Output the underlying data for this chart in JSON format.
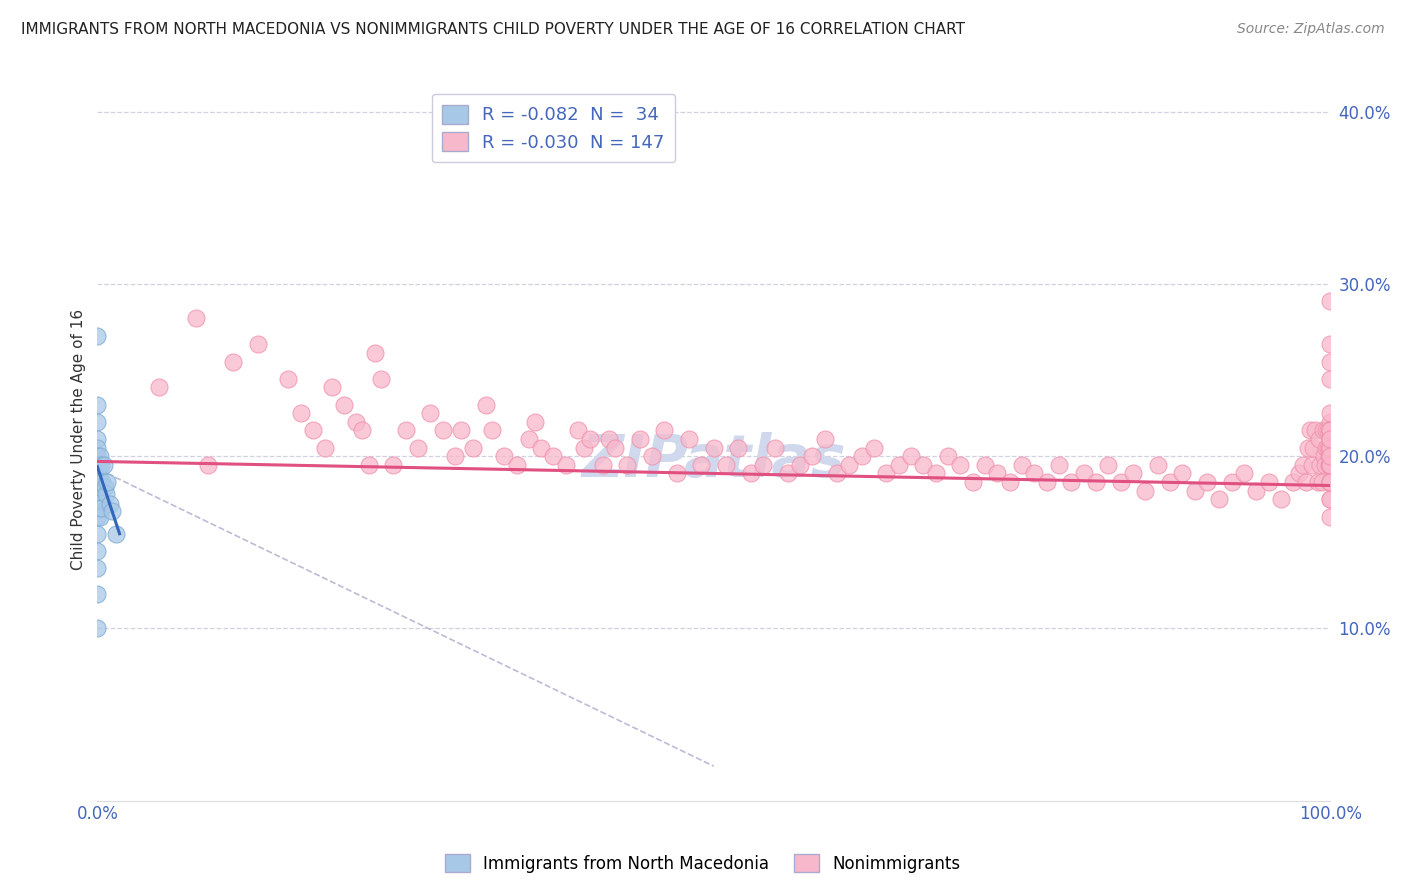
{
  "title": "IMMIGRANTS FROM NORTH MACEDONIA VS NONIMMIGRANTS CHILD POVERTY UNDER THE AGE OF 16 CORRELATION CHART",
  "source": "Source: ZipAtlas.com",
  "ylabel": "Child Poverty Under the Age of 16",
  "xlim": [
    0.0,
    1.0
  ],
  "ylim": [
    0.0,
    0.42
  ],
  "yticks": [
    0.1,
    0.2,
    0.3,
    0.4
  ],
  "ytick_labels": [
    "10.0%",
    "20.0%",
    "30.0%",
    "40.0%"
  ],
  "xticks": [
    0.0,
    0.5,
    1.0
  ],
  "xtick_labels": [
    "0.0%",
    "",
    "100.0%"
  ],
  "background_color": "#ffffff",
  "grid_color": "#ccccdd",
  "blue_fill": "#a8c8e8",
  "blue_edge": "#7aaad0",
  "pink_fill": "#f8b8cc",
  "pink_edge": "#f090aa",
  "blue_line_color": "#3366bb",
  "pink_line_color": "#e05080",
  "dashed_line_color": "#aaaacc",
  "tick_color": "#4466bb",
  "watermark_color": "#d0d8ee",
  "imm_x": [
    0.0,
    0.0,
    0.0,
    0.0,
    0.0,
    0.0,
    0.0,
    0.0,
    0.0,
    0.0,
    0.0,
    0.0,
    0.0,
    0.0,
    0.0,
    0.0,
    0.0,
    0.0,
    0.001,
    0.001,
    0.001,
    0.002,
    0.002,
    0.002,
    0.003,
    0.003,
    0.004,
    0.005,
    0.006,
    0.007,
    0.008,
    0.01,
    0.012,
    0.015
  ],
  "imm_y": [
    0.27,
    0.23,
    0.22,
    0.21,
    0.205,
    0.2,
    0.195,
    0.19,
    0.185,
    0.18,
    0.175,
    0.17,
    0.165,
    0.155,
    0.145,
    0.135,
    0.12,
    0.1,
    0.195,
    0.188,
    0.175,
    0.2,
    0.182,
    0.165,
    0.195,
    0.17,
    0.185,
    0.195,
    0.182,
    0.178,
    0.185,
    0.172,
    0.168,
    0.155
  ],
  "non_x": [
    0.05,
    0.08,
    0.09,
    0.11,
    0.13,
    0.155,
    0.165,
    0.175,
    0.185,
    0.19,
    0.2,
    0.21,
    0.215,
    0.22,
    0.225,
    0.23,
    0.24,
    0.25,
    0.26,
    0.27,
    0.28,
    0.29,
    0.295,
    0.305,
    0.315,
    0.32,
    0.33,
    0.34,
    0.35,
    0.355,
    0.36,
    0.37,
    0.38,
    0.39,
    0.395,
    0.4,
    0.41,
    0.415,
    0.42,
    0.43,
    0.44,
    0.45,
    0.46,
    0.47,
    0.48,
    0.49,
    0.5,
    0.51,
    0.52,
    0.53,
    0.54,
    0.55,
    0.56,
    0.57,
    0.58,
    0.59,
    0.6,
    0.61,
    0.62,
    0.63,
    0.64,
    0.65,
    0.66,
    0.67,
    0.68,
    0.69,
    0.7,
    0.71,
    0.72,
    0.73,
    0.74,
    0.75,
    0.76,
    0.77,
    0.78,
    0.79,
    0.8,
    0.81,
    0.82,
    0.83,
    0.84,
    0.85,
    0.86,
    0.87,
    0.88,
    0.89,
    0.9,
    0.91,
    0.92,
    0.93,
    0.94,
    0.95,
    0.96,
    0.97,
    0.975,
    0.978,
    0.98,
    0.982,
    0.984,
    0.985,
    0.986,
    0.988,
    0.99,
    0.991,
    0.992,
    0.993,
    0.994,
    0.995,
    0.996,
    0.997,
    0.997,
    0.998,
    0.998,
    0.999,
    0.999,
    1.0,
    1.0,
    1.0,
    1.0,
    1.0,
    1.0,
    1.0,
    1.0,
    1.0,
    1.0,
    1.0,
    1.0,
    1.0,
    1.0,
    1.0,
    1.0,
    1.0,
    1.0,
    1.0,
    1.0,
    1.0,
    1.0,
    1.0,
    1.0,
    1.0,
    1.0,
    1.0,
    1.0,
    1.0,
    1.0,
    1.0,
    1.0
  ],
  "non_y": [
    0.24,
    0.28,
    0.195,
    0.255,
    0.265,
    0.245,
    0.225,
    0.215,
    0.205,
    0.24,
    0.23,
    0.22,
    0.215,
    0.195,
    0.26,
    0.245,
    0.195,
    0.215,
    0.205,
    0.225,
    0.215,
    0.2,
    0.215,
    0.205,
    0.23,
    0.215,
    0.2,
    0.195,
    0.21,
    0.22,
    0.205,
    0.2,
    0.195,
    0.215,
    0.205,
    0.21,
    0.195,
    0.21,
    0.205,
    0.195,
    0.21,
    0.2,
    0.215,
    0.19,
    0.21,
    0.195,
    0.205,
    0.195,
    0.205,
    0.19,
    0.195,
    0.205,
    0.19,
    0.195,
    0.2,
    0.21,
    0.19,
    0.195,
    0.2,
    0.205,
    0.19,
    0.195,
    0.2,
    0.195,
    0.19,
    0.2,
    0.195,
    0.185,
    0.195,
    0.19,
    0.185,
    0.195,
    0.19,
    0.185,
    0.195,
    0.185,
    0.19,
    0.185,
    0.195,
    0.185,
    0.19,
    0.18,
    0.195,
    0.185,
    0.19,
    0.18,
    0.185,
    0.175,
    0.185,
    0.19,
    0.18,
    0.185,
    0.175,
    0.185,
    0.19,
    0.195,
    0.185,
    0.205,
    0.215,
    0.195,
    0.205,
    0.215,
    0.185,
    0.21,
    0.195,
    0.185,
    0.215,
    0.2,
    0.195,
    0.205,
    0.215,
    0.205,
    0.215,
    0.2,
    0.195,
    0.215,
    0.205,
    0.195,
    0.215,
    0.2,
    0.205,
    0.175,
    0.185,
    0.22,
    0.195,
    0.165,
    0.185,
    0.205,
    0.195,
    0.215,
    0.21,
    0.2,
    0.175,
    0.195,
    0.185,
    0.21,
    0.205,
    0.195,
    0.185,
    0.215,
    0.29,
    0.255,
    0.245,
    0.265,
    0.225,
    0.21,
    0.2
  ]
}
